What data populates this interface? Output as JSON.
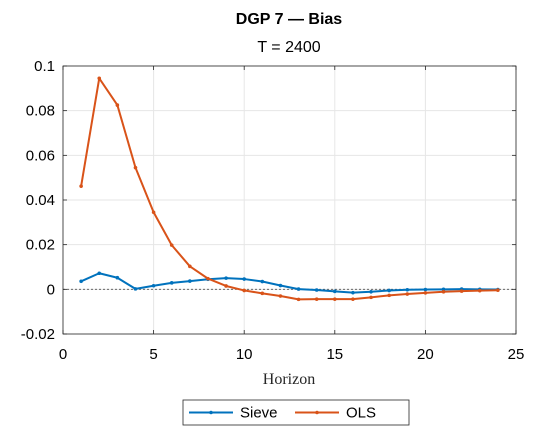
{
  "chart_data": {
    "type": "line",
    "title": "DGP 7  —  Bias",
    "subtitle": "T = 2400",
    "xlabel": "Horizon",
    "ylabel": "",
    "xlim": [
      0,
      25
    ],
    "ylim": [
      -0.02,
      0.1
    ],
    "xticks": [
      0,
      5,
      10,
      15,
      20,
      25
    ],
    "xtick_labels": [
      "0",
      "5",
      "10",
      "15",
      "20",
      "25"
    ],
    "yticks": [
      -0.02,
      0,
      0.02,
      0.04,
      0.06,
      0.08,
      0.1
    ],
    "ytick_labels": [
      "-0.02",
      "0",
      "0.02",
      "0.04",
      "0.06",
      "0.08",
      "0.1"
    ],
    "grid": true,
    "legend_position": "bottom-outside",
    "zero_line": true,
    "x": [
      1,
      2,
      3,
      4,
      5,
      6,
      7,
      8,
      9,
      10,
      11,
      12,
      13,
      14,
      15,
      16,
      17,
      18,
      19,
      20,
      21,
      22,
      23,
      24
    ],
    "series": [
      {
        "name": "Sieve",
        "color": "#0072BD",
        "values": [
          0.0036,
          0.0072,
          0.0052,
          0.0002,
          0.0016,
          0.0029,
          0.0037,
          0.0045,
          0.005,
          0.0046,
          0.0035,
          0.0017,
          0.0001,
          -0.0003,
          -0.0009,
          -0.0015,
          -0.0011,
          -0.0005,
          -0.0002,
          -0.0001,
          0.0,
          0.0001,
          0.0,
          -0.0001
        ]
      },
      {
        "name": "OLS",
        "color": "#D95319",
        "values": [
          0.0462,
          0.0945,
          0.0825,
          0.0545,
          0.0345,
          0.0198,
          0.0103,
          0.0048,
          0.0015,
          -0.0005,
          -0.0018,
          -0.003,
          -0.0045,
          -0.0044,
          -0.0044,
          -0.0044,
          -0.0036,
          -0.0027,
          -0.0021,
          -0.0016,
          -0.0011,
          -0.0008,
          -0.0006,
          -0.0004
        ]
      }
    ]
  }
}
